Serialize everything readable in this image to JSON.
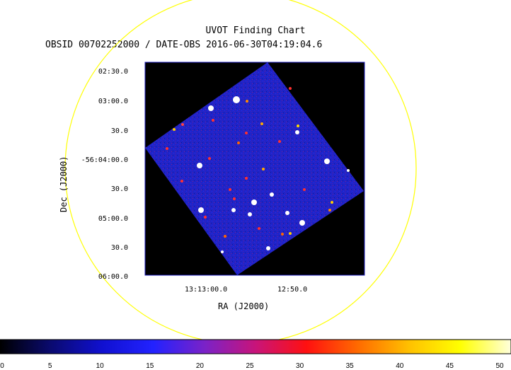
{
  "chart_data": {
    "type": "heatmap",
    "title": "UVOT Finding Chart",
    "subtitle": "OBSID 00702252000 / DATE-OBS 2016-06-30T04:19:04.6",
    "xlabel": "RA (J2000)",
    "ylabel": "Dec (J2000)",
    "x_ticks": [
      "13:13:00.0",
      "12:50.0"
    ],
    "y_ticks": [
      "02:30.0",
      "03:00.0",
      "30.0",
      "-56:04:00.0",
      "30.0",
      "05:00.0",
      "30.0",
      "06:00.0"
    ],
    "colorbar": {
      "ticks": [
        "0",
        "5",
        "10",
        "15",
        "20",
        "25",
        "30",
        "35",
        "40",
        "45",
        "50"
      ],
      "range": [
        0,
        50
      ],
      "colors": [
        "#000000",
        "#0a0a70",
        "#1010d0",
        "#2222ff",
        "#7a22c8",
        "#c8147a",
        "#ff1010",
        "#ff6a00",
        "#ffc000",
        "#ffff00",
        "#ffffdc"
      ]
    },
    "colors": {
      "circle": "#ffff00",
      "background": "#000000",
      "field": "#1f24c8"
    }
  }
}
